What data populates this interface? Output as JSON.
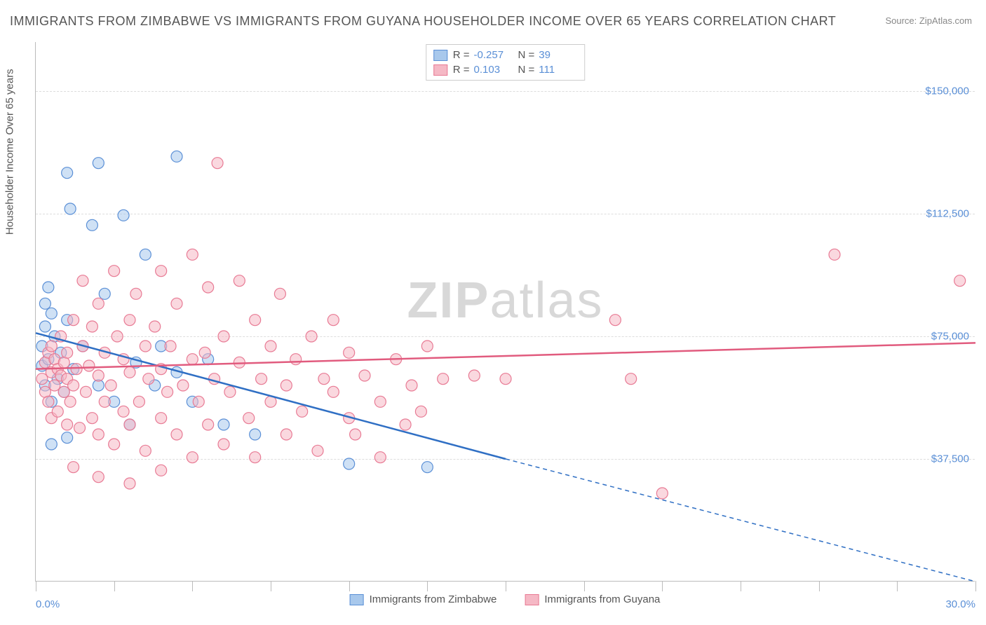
{
  "title": "IMMIGRANTS FROM ZIMBABWE VS IMMIGRANTS FROM GUYANA HOUSEHOLDER INCOME OVER 65 YEARS CORRELATION CHART",
  "source": "Source: ZipAtlas.com",
  "ylabel": "Householder Income Over 65 years",
  "watermark_a": "ZIP",
  "watermark_b": "atlas",
  "chart": {
    "type": "scatter",
    "xlim": [
      0,
      30
    ],
    "ylim": [
      0,
      165000
    ],
    "xticks": [
      0,
      2.5,
      5,
      7.5,
      10,
      12.5,
      15,
      17.5,
      20,
      22.5,
      25,
      27.5,
      30
    ],
    "xtick_labels": {
      "0": "0.0%",
      "30": "30.0%"
    },
    "yticks": [
      37500,
      75000,
      112500,
      150000
    ],
    "ytick_labels": [
      "$37,500",
      "$75,000",
      "$112,500",
      "$150,000"
    ],
    "background_color": "#ffffff",
    "grid_color": "#dddddd",
    "axis_color": "#bbbbbb",
    "marker_radius": 8,
    "marker_opacity": 0.55,
    "line_width": 2.5,
    "series": [
      {
        "name": "Immigrants from Zimbabwe",
        "fill": "#a8c8ec",
        "stroke": "#5a8fd6",
        "line_color": "#2f6fc4",
        "R": "-0.257",
        "N": "39",
        "trend": {
          "x1": 0,
          "y1": 76000,
          "x2_solid": 15,
          "y2_solid": 37500,
          "x2": 30,
          "y2": 0
        },
        "points": [
          [
            0.2,
            72000
          ],
          [
            0.2,
            66000
          ],
          [
            0.3,
            85000
          ],
          [
            0.3,
            78000
          ],
          [
            0.3,
            60000
          ],
          [
            0.4,
            68000
          ],
          [
            0.4,
            90000
          ],
          [
            0.5,
            82000
          ],
          [
            0.5,
            55000
          ],
          [
            0.6,
            75000
          ],
          [
            0.7,
            62000
          ],
          [
            0.8,
            70000
          ],
          [
            0.9,
            58000
          ],
          [
            1.0,
            80000
          ],
          [
            1.0,
            125000
          ],
          [
            1.0,
            44000
          ],
          [
            1.1,
            114000
          ],
          [
            1.2,
            65000
          ],
          [
            1.5,
            72000
          ],
          [
            1.8,
            109000
          ],
          [
            2.0,
            128000
          ],
          [
            2.0,
            60000
          ],
          [
            2.2,
            88000
          ],
          [
            2.5,
            55000
          ],
          [
            2.8,
            112000
          ],
          [
            3.0,
            48000
          ],
          [
            3.2,
            67000
          ],
          [
            3.5,
            100000
          ],
          [
            3.8,
            60000
          ],
          [
            4.0,
            72000
          ],
          [
            4.5,
            130000
          ],
          [
            4.5,
            64000
          ],
          [
            5.0,
            55000
          ],
          [
            5.5,
            68000
          ],
          [
            6.0,
            48000
          ],
          [
            7.0,
            45000
          ],
          [
            10.0,
            36000
          ],
          [
            12.5,
            35000
          ],
          [
            0.5,
            42000
          ]
        ]
      },
      {
        "name": "Immigrants from Guyana",
        "fill": "#f5b8c5",
        "stroke": "#e87a94",
        "line_color": "#e15b7e",
        "R": "0.103",
        "N": "111",
        "trend": {
          "x1": 0,
          "y1": 65000,
          "x2_solid": 30,
          "y2_solid": 73000,
          "x2": 30,
          "y2": 73000
        },
        "points": [
          [
            0.2,
            62000
          ],
          [
            0.3,
            58000
          ],
          [
            0.3,
            67000
          ],
          [
            0.4,
            70000
          ],
          [
            0.4,
            55000
          ],
          [
            0.5,
            64000
          ],
          [
            0.5,
            72000
          ],
          [
            0.5,
            50000
          ],
          [
            0.6,
            60000
          ],
          [
            0.6,
            68000
          ],
          [
            0.7,
            65000
          ],
          [
            0.7,
            52000
          ],
          [
            0.8,
            63000
          ],
          [
            0.8,
            75000
          ],
          [
            0.9,
            58000
          ],
          [
            0.9,
            67000
          ],
          [
            1.0,
            62000
          ],
          [
            1.0,
            48000
          ],
          [
            1.0,
            70000
          ],
          [
            1.1,
            55000
          ],
          [
            1.2,
            80000
          ],
          [
            1.2,
            60000
          ],
          [
            1.3,
            65000
          ],
          [
            1.4,
            47000
          ],
          [
            1.5,
            72000
          ],
          [
            1.5,
            92000
          ],
          [
            1.6,
            58000
          ],
          [
            1.7,
            66000
          ],
          [
            1.8,
            50000
          ],
          [
            1.8,
            78000
          ],
          [
            2.0,
            63000
          ],
          [
            2.0,
            85000
          ],
          [
            2.0,
            45000
          ],
          [
            2.2,
            70000
          ],
          [
            2.2,
            55000
          ],
          [
            2.4,
            60000
          ],
          [
            2.5,
            95000
          ],
          [
            2.5,
            42000
          ],
          [
            2.6,
            75000
          ],
          [
            2.8,
            52000
          ],
          [
            2.8,
            68000
          ],
          [
            3.0,
            80000
          ],
          [
            3.0,
            48000
          ],
          [
            3.0,
            64000
          ],
          [
            3.2,
            88000
          ],
          [
            3.3,
            55000
          ],
          [
            3.5,
            72000
          ],
          [
            3.5,
            40000
          ],
          [
            3.6,
            62000
          ],
          [
            3.8,
            78000
          ],
          [
            4.0,
            50000
          ],
          [
            4.0,
            95000
          ],
          [
            4.0,
            65000
          ],
          [
            4.2,
            58000
          ],
          [
            4.3,
            72000
          ],
          [
            4.5,
            45000
          ],
          [
            4.5,
            85000
          ],
          [
            4.7,
            60000
          ],
          [
            5.0,
            68000
          ],
          [
            5.0,
            38000
          ],
          [
            5.0,
            100000
          ],
          [
            5.2,
            55000
          ],
          [
            5.4,
            70000
          ],
          [
            5.5,
            90000
          ],
          [
            5.5,
            48000
          ],
          [
            5.7,
            62000
          ],
          [
            5.8,
            128000
          ],
          [
            6.0,
            75000
          ],
          [
            6.0,
            42000
          ],
          [
            6.2,
            58000
          ],
          [
            6.5,
            67000
          ],
          [
            6.5,
            92000
          ],
          [
            6.8,
            50000
          ],
          [
            7.0,
            80000
          ],
          [
            7.0,
            38000
          ],
          [
            7.2,
            62000
          ],
          [
            7.5,
            72000
          ],
          [
            7.5,
            55000
          ],
          [
            7.8,
            88000
          ],
          [
            8.0,
            60000
          ],
          [
            8.0,
            45000
          ],
          [
            8.3,
            68000
          ],
          [
            8.5,
            52000
          ],
          [
            8.8,
            75000
          ],
          [
            9.0,
            40000
          ],
          [
            9.2,
            62000
          ],
          [
            9.5,
            58000
          ],
          [
            9.5,
            80000
          ],
          [
            10.0,
            50000
          ],
          [
            10.0,
            70000
          ],
          [
            10.2,
            45000
          ],
          [
            10.5,
            63000
          ],
          [
            11.0,
            55000
          ],
          [
            11.0,
            38000
          ],
          [
            11.5,
            68000
          ],
          [
            11.8,
            48000
          ],
          [
            12.0,
            60000
          ],
          [
            12.3,
            52000
          ],
          [
            12.5,
            72000
          ],
          [
            13.0,
            62000
          ],
          [
            14.0,
            63000
          ],
          [
            15.0,
            62000
          ],
          [
            18.5,
            80000
          ],
          [
            19.0,
            62000
          ],
          [
            20.0,
            27000
          ],
          [
            25.5,
            100000
          ],
          [
            29.5,
            92000
          ],
          [
            1.2,
            35000
          ],
          [
            2.0,
            32000
          ],
          [
            3.0,
            30000
          ],
          [
            4.0,
            34000
          ]
        ]
      }
    ]
  }
}
